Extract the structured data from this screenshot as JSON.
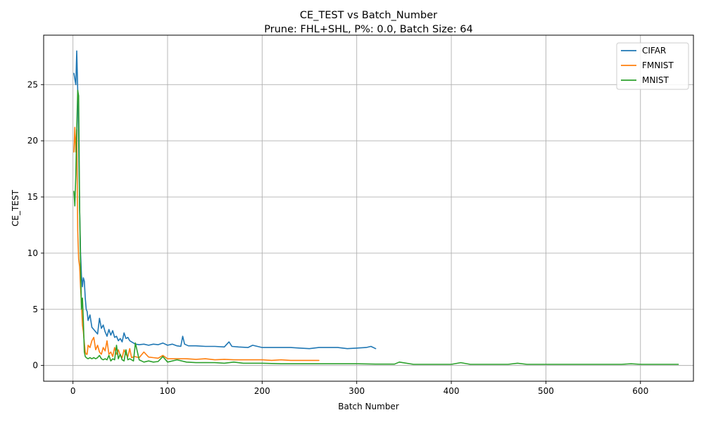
{
  "chart_data": {
    "type": "line",
    "title": "CE_TEST vs Batch_Number",
    "subtitle": "Prune: FHL+SHL, P%: 0.0, Batch Size: 64",
    "xlabel": "Batch Number",
    "ylabel": "CE_TEST",
    "xlim": [
      -31,
      656
    ],
    "ylim": [
      -1.4,
      29.4
    ],
    "xticks": [
      0,
      100,
      200,
      300,
      400,
      500,
      600
    ],
    "yticks": [
      0,
      5,
      10,
      15,
      20,
      25
    ],
    "grid": true,
    "legend_position": "top-right",
    "series": [
      {
        "name": "CIFAR",
        "color": "#1f77b4",
        "x": [
          1,
          2,
          3,
          4,
          5,
          6,
          7,
          8,
          9,
          10,
          11,
          12,
          13,
          14,
          15,
          16,
          18,
          20,
          22,
          24,
          26,
          28,
          30,
          32,
          34,
          36,
          38,
          40,
          42,
          44,
          46,
          48,
          50,
          52,
          54,
          56,
          58,
          60,
          62,
          64,
          66,
          70,
          75,
          80,
          85,
          90,
          95,
          100,
          105,
          110,
          114,
          116,
          118,
          122,
          130,
          140,
          150,
          160,
          165,
          168,
          175,
          185,
          190,
          200,
          210,
          220,
          230,
          240,
          250,
          260,
          270,
          280,
          290,
          300,
          310,
          315,
          320
        ],
        "y": [
          26.0,
          25.5,
          25.0,
          28.0,
          24.5,
          20.0,
          14.0,
          10.0,
          8.0,
          7.0,
          7.8,
          7.5,
          6.0,
          5.0,
          4.8,
          4.0,
          4.5,
          3.4,
          3.2,
          3.0,
          2.8,
          4.2,
          3.3,
          3.6,
          3.0,
          2.6,
          3.2,
          2.7,
          3.1,
          2.5,
          2.6,
          2.2,
          2.4,
          2.1,
          2.9,
          2.4,
          2.5,
          2.2,
          2.1,
          2.0,
          1.9,
          1.85,
          1.9,
          1.8,
          1.9,
          1.85,
          2.0,
          1.8,
          1.9,
          1.75,
          1.7,
          2.6,
          1.9,
          1.75,
          1.75,
          1.7,
          1.7,
          1.65,
          2.1,
          1.7,
          1.65,
          1.6,
          1.8,
          1.6,
          1.6,
          1.6,
          1.6,
          1.55,
          1.5,
          1.6,
          1.6,
          1.6,
          1.5,
          1.55,
          1.6,
          1.7,
          1.5
        ]
      },
      {
        "name": "FMNIST",
        "color": "#ff7f0e",
        "x": [
          1,
          2,
          3,
          4,
          5,
          6,
          7,
          8,
          9,
          10,
          11,
          12,
          13,
          14,
          15,
          16,
          18,
          20,
          22,
          24,
          26,
          28,
          30,
          32,
          34,
          36,
          38,
          40,
          42,
          44,
          46,
          48,
          50,
          52,
          54,
          56,
          58,
          60,
          62,
          65,
          70,
          75,
          80,
          85,
          90,
          95,
          100,
          110,
          120,
          130,
          140,
          150,
          160,
          170,
          180,
          190,
          200,
          210,
          220,
          230,
          240,
          250,
          260
        ],
        "y": [
          19.0,
          21.2,
          19.0,
          21.0,
          12.0,
          9.5,
          8.8,
          7.0,
          5.5,
          3.6,
          3.0,
          2.0,
          1.2,
          1.0,
          1.0,
          1.8,
          1.6,
          2.2,
          2.5,
          1.4,
          1.8,
          1.2,
          1.0,
          1.6,
          1.3,
          2.2,
          1.0,
          1.2,
          0.8,
          1.6,
          1.0,
          1.4,
          0.9,
          0.7,
          1.4,
          1.0,
          0.8,
          1.5,
          0.7,
          0.8,
          0.7,
          1.2,
          0.75,
          0.7,
          0.65,
          0.9,
          0.6,
          0.6,
          0.6,
          0.55,
          0.6,
          0.5,
          0.55,
          0.5,
          0.5,
          0.5,
          0.5,
          0.45,
          0.5,
          0.45,
          0.45,
          0.45,
          0.45
        ]
      },
      {
        "name": "MNIST",
        "color": "#2ca02c",
        "x": [
          1,
          2,
          3,
          4,
          5,
          6,
          7,
          8,
          9,
          10,
          11,
          12,
          13,
          14,
          15,
          16,
          18,
          20,
          22,
          24,
          26,
          28,
          30,
          32,
          34,
          36,
          38,
          40,
          42,
          44,
          46,
          48,
          50,
          52,
          54,
          56,
          58,
          60,
          62,
          64,
          66,
          70,
          75,
          80,
          85,
          90,
          95,
          100,
          110,
          120,
          130,
          140,
          150,
          160,
          170,
          180,
          190,
          200,
          220,
          240,
          260,
          280,
          300,
          320,
          340,
          345,
          360,
          380,
          400,
          410,
          420,
          440,
          460,
          470,
          480,
          500,
          520,
          540,
          560,
          580,
          590,
          600,
          620,
          640
        ],
        "y": [
          15.5,
          14.2,
          17.0,
          21.0,
          24.5,
          24.0,
          14.0,
          9.0,
          5.0,
          6.0,
          4.0,
          1.2,
          0.8,
          0.7,
          0.65,
          0.6,
          0.7,
          0.6,
          0.7,
          0.6,
          0.7,
          0.9,
          0.6,
          0.5,
          0.6,
          0.5,
          0.9,
          0.4,
          0.6,
          0.5,
          1.8,
          0.6,
          1.0,
          0.5,
          0.4,
          1.4,
          0.5,
          0.6,
          0.5,
          0.4,
          2.0,
          0.5,
          0.3,
          0.4,
          0.3,
          0.35,
          0.8,
          0.3,
          0.5,
          0.3,
          0.25,
          0.25,
          0.25,
          0.2,
          0.3,
          0.2,
          0.2,
          0.2,
          0.15,
          0.15,
          0.15,
          0.15,
          0.15,
          0.12,
          0.12,
          0.3,
          0.1,
          0.1,
          0.1,
          0.25,
          0.1,
          0.1,
          0.1,
          0.2,
          0.1,
          0.1,
          0.1,
          0.1,
          0.1,
          0.1,
          0.15,
          0.1,
          0.1,
          0.1
        ]
      }
    ]
  }
}
